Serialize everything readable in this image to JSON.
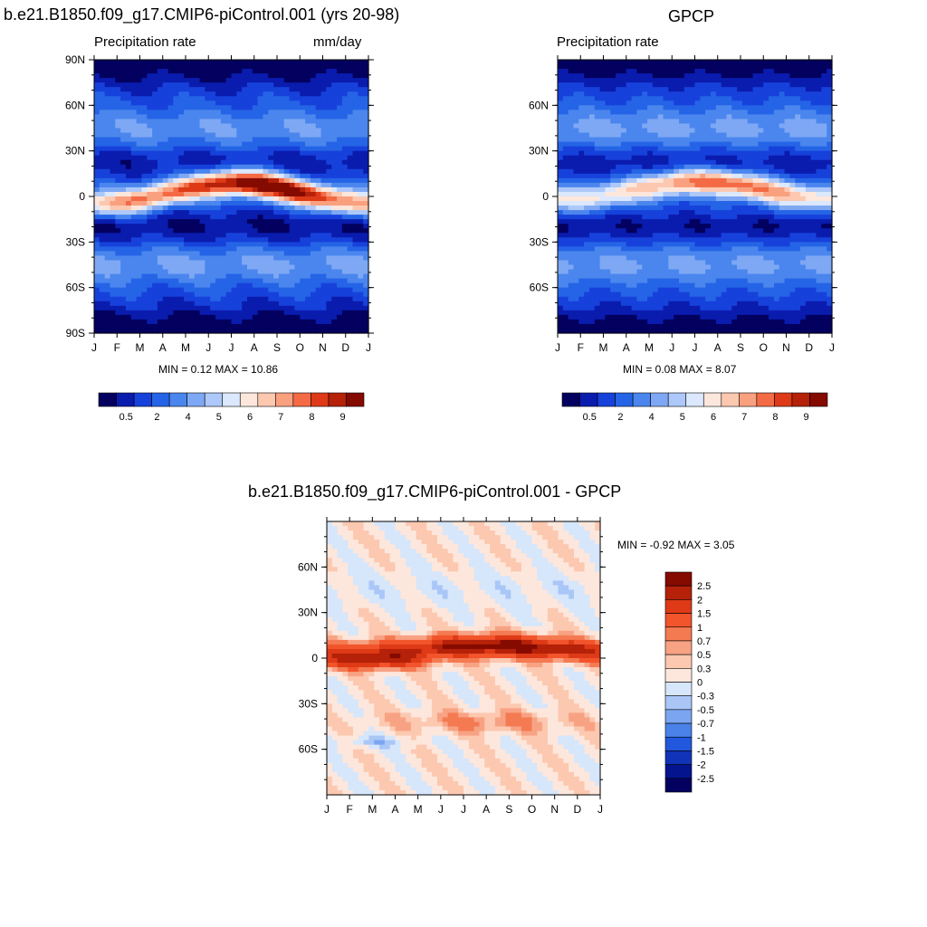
{
  "chart_data": [
    {
      "type": "heatmap",
      "title": "b.e21.B1850.f09_g17.CMIP6-piControl.001 (yrs 20-98)",
      "left_label": "Precipitation rate",
      "right_label": "mm/day",
      "x_ticks": [
        "J",
        "F",
        "M",
        "A",
        "M",
        "J",
        "J",
        "A",
        "S",
        "O",
        "N",
        "D",
        "J"
      ],
      "y_ticks": [
        "90N",
        "60N",
        "30N",
        "0",
        "30S",
        "60S",
        "90S"
      ],
      "minmax_text": "MIN =   0.12 MAX =  10.86",
      "min": 0.12,
      "max": 10.86,
      "colorbar_labels": [
        "0.5",
        "2",
        "4",
        "5",
        "6",
        "7",
        "8",
        "9"
      ],
      "colors": [
        "#03005f",
        "#0a1cae",
        "#1741db",
        "#2564e6",
        "#4b86ee",
        "#7ea8f4",
        "#adc8f9",
        "#dbe8fd",
        "#fde7dc",
        "#fcc8b0",
        "#f9a07f",
        "#f46a45",
        "#de3a17",
        "#b52109",
        "#850a00"
      ]
    },
    {
      "type": "heatmap",
      "title": "GPCP",
      "left_label": "Precipitation rate",
      "x_ticks": [
        "J",
        "F",
        "M",
        "A",
        "M",
        "J",
        "J",
        "A",
        "S",
        "O",
        "N",
        "D",
        "J"
      ],
      "y_ticks": [
        "60N",
        "30N",
        "0",
        "30S",
        "60S"
      ],
      "minmax_text": "MIN =   0.08 MAX =   8.07",
      "min": 0.08,
      "max": 8.07,
      "colorbar_labels": [
        "0.5",
        "2",
        "4",
        "5",
        "6",
        "7",
        "8",
        "9"
      ],
      "colors": [
        "#03005f",
        "#0a1cae",
        "#1741db",
        "#2564e6",
        "#4b86ee",
        "#7ea8f4",
        "#adc8f9",
        "#dbe8fd",
        "#fde7dc",
        "#fcc8b0",
        "#f9a07f",
        "#f46a45",
        "#de3a17",
        "#b52109",
        "#850a00"
      ]
    },
    {
      "type": "heatmap",
      "title": "b.e21.B1850.f09_g17.CMIP6-piControl.001 - GPCP",
      "x_ticks": [
        "J",
        "F",
        "M",
        "A",
        "M",
        "J",
        "J",
        "A",
        "S",
        "O",
        "N",
        "D",
        "J"
      ],
      "y_ticks": [
        "60N",
        "30N",
        "0",
        "30S",
        "60S"
      ],
      "minmax_text": "MIN =  -0.92 MAX =   3.05",
      "min": -0.92,
      "max": 3.05,
      "colorbar_labels": [
        "2.5",
        "2",
        "1.5",
        "1",
        "0.7",
        "0.5",
        "0.3",
        "0",
        "-0.3",
        "-0.5",
        "-0.7",
        "-1",
        "-1.5",
        "-2",
        "-2.5"
      ],
      "colors": [
        "#850a00",
        "#b52109",
        "#de3a17",
        "#f2542c",
        "#f47a52",
        "#f8a284",
        "#fcc8b0",
        "#fde7dc",
        "#d6e6fb",
        "#a9c6f7",
        "#7ba5f1",
        "#4a82ea",
        "#2158dd",
        "#1133b8",
        "#04148f",
        "#03005f"
      ]
    }
  ]
}
